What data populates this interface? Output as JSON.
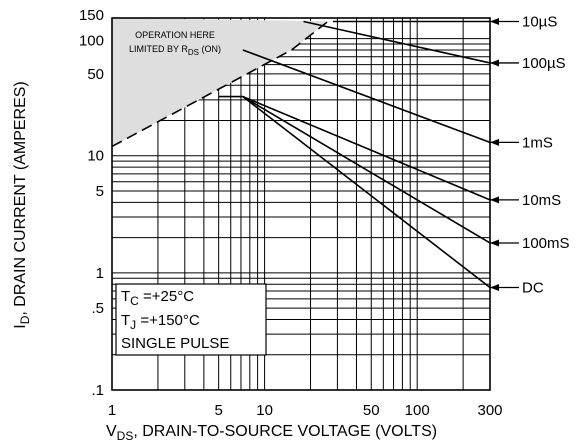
{
  "chart_data": {
    "type": "line",
    "title": "",
    "xlabel": {
      "prefix": "V",
      "sub": "DS",
      "suffix": ", DRAIN-TO-SOURCE VOLTAGE (VOLTS)"
    },
    "ylabel": {
      "prefix": "I",
      "sub": "D",
      "suffix": ", DRAIN CURRENT (AMPERES)"
    },
    "xscale": "log",
    "yscale": "log",
    "xlim": [
      1,
      300
    ],
    "ylim": [
      0.1,
      150
    ],
    "grid": true,
    "x_tick_labels": [
      {
        "value": 1,
        "label": "1"
      },
      {
        "value": 5,
        "label": "5"
      },
      {
        "value": 10,
        "label": "10"
      },
      {
        "value": 50,
        "label": "50"
      },
      {
        "value": 100,
        "label": "100"
      },
      {
        "value": 300,
        "label": "300"
      }
    ],
    "y_tick_labels": [
      {
        "value": 150,
        "label": "150"
      },
      {
        "value": 100,
        "label": "100"
      },
      {
        "value": 50,
        "label": "50"
      },
      {
        "value": 10,
        "label": "10"
      },
      {
        "value": 5,
        "label": "5"
      },
      {
        "value": 1,
        "label": "1"
      },
      {
        "value": 0.5,
        "label": ".5"
      },
      {
        "value": 0.1,
        "label": ".1"
      }
    ],
    "series": [
      {
        "name": "10µS",
        "x": [
          32,
          300
        ],
        "y": [
          140,
          140
        ]
      },
      {
        "name": "100µS",
        "x": [
          18,
          300
        ],
        "y": [
          140,
          62
        ]
      },
      {
        "name": "1mS",
        "x": [
          7.2,
          300
        ],
        "y": [
          80,
          13
        ]
      },
      {
        "name": "10mS",
        "x": [
          7.2,
          300
        ],
        "y": [
          32,
          4.2
        ]
      },
      {
        "name": "100mS",
        "x": [
          7.2,
          300
        ],
        "y": [
          32,
          1.8
        ]
      },
      {
        "name": "DC",
        "x": [
          5,
          7.2,
          300
        ],
        "y": [
          32,
          32,
          0.75
        ]
      }
    ],
    "rds_limit": {
      "x": [
        1,
        15,
        26,
        32
      ],
      "y": [
        12,
        80,
        140,
        140
      ],
      "style": "dashed",
      "note_line1": "OPERATION HERE",
      "note_line2_prefix": "LIMITED BY R",
      "note_line2_sub": "DS",
      "note_line2_suffix": " (ON)"
    },
    "conditions": {
      "tc": {
        "prefix": "T",
        "sub": "C",
        "suffix": " =+25°C"
      },
      "tj": {
        "prefix": "T",
        "sub": "J",
        "suffix": " =+150°C"
      },
      "pulse": "SINGLE PULSE"
    }
  }
}
